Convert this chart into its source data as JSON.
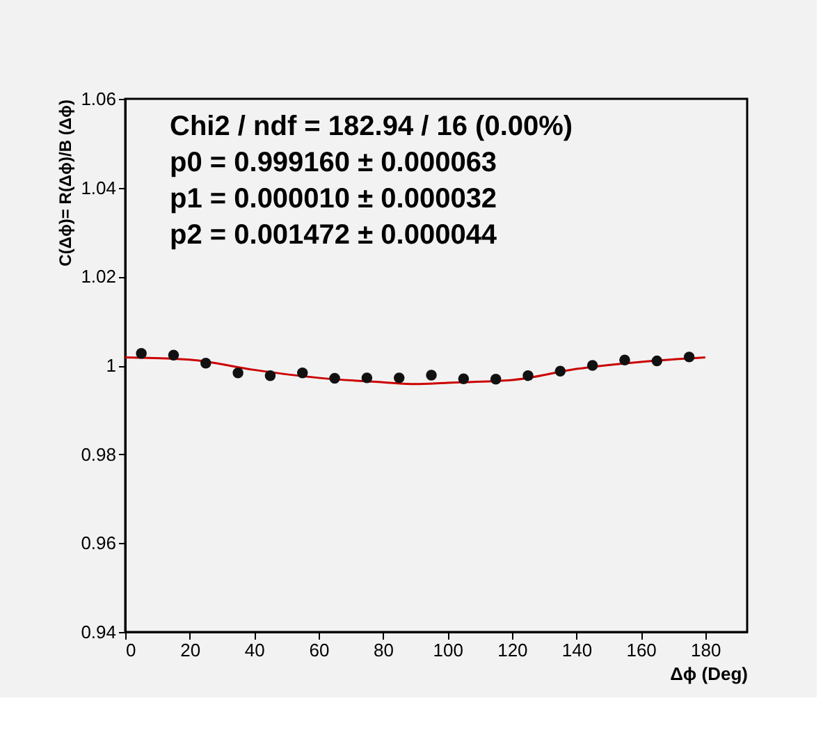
{
  "chart_data": {
    "type": "scatter",
    "xlabel": "Δϕ (Deg)",
    "ylabel": "C(Δϕ)= R(Δϕ)/B (Δϕ)",
    "annotations": [
      "Chi2 / ndf = 182.94 / 16 (0.00%)",
      "p0 = 0.999160  ± 0.000063",
      "p1 = 0.000010  ± 0.000032",
      "p2 = 0.001472  ± 0.000044"
    ],
    "xlim": [
      0,
      193
    ],
    "xticks": [
      0,
      20,
      40,
      60,
      80,
      100,
      120,
      140,
      160,
      180
    ],
    "ylim": [
      0.94,
      1.06
    ],
    "yticks": [
      0.94,
      0.96,
      0.98,
      1,
      1.02,
      1.04,
      1.06
    ],
    "grid": false,
    "series": [
      {
        "type": "scatter",
        "color": "#111111",
        "marker": "circle",
        "x": [
          5,
          15,
          25,
          35,
          45,
          55,
          65,
          75,
          85,
          95,
          105,
          115,
          125,
          135,
          145,
          155,
          165,
          175
        ],
        "values": [
          1.0027,
          1.0023,
          1.0005,
          0.9983,
          0.9977,
          0.9983,
          0.9971,
          0.9972,
          0.9972,
          0.9978,
          0.997,
          0.9969,
          0.9977,
          0.9987,
          1.0,
          1.0012,
          1.001,
          1.0019
        ]
      },
      {
        "type": "line",
        "color": "#cc0000",
        "line_style": "solid",
        "x": [
          0,
          20,
          40,
          60,
          80,
          90,
          100,
          120,
          140,
          160,
          180
        ],
        "values": [
          1.0018,
          1.0013,
          0.999,
          0.9972,
          0.9962,
          0.9958,
          0.9961,
          0.9967,
          0.9992,
          1.0008,
          1.0018
        ]
      }
    ]
  }
}
